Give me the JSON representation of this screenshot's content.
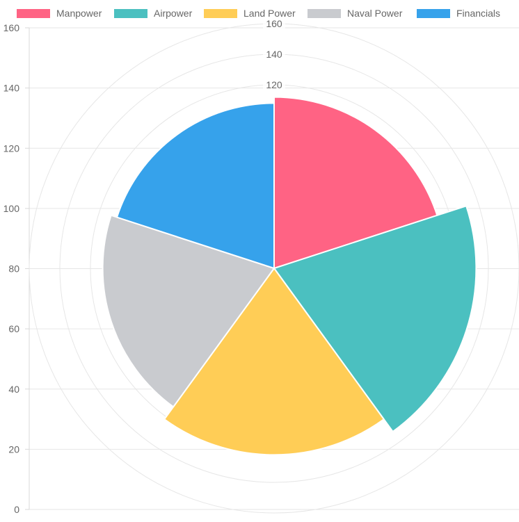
{
  "chart_data": {
    "type": "polarArea",
    "title": "",
    "categories": [
      "Manpower",
      "Airpower",
      "Land Power",
      "Naval Power",
      "Financials"
    ],
    "values": [
      112,
      132,
      122,
      112,
      108
    ],
    "colors": [
      "#FF6384",
      "#4BC0C0",
      "#FFCD56",
      "#C9CBCF",
      "#36A2EB"
    ],
    "legend": {
      "position": "top",
      "entries": [
        "Manpower",
        "Airpower",
        "Land Power",
        "Naval Power",
        "Financials"
      ]
    },
    "left_axis": {
      "range": [
        0,
        160
      ],
      "ticks": [
        "0",
        "20",
        "40",
        "60",
        "80",
        "100",
        "120",
        "140",
        "160"
      ]
    },
    "radial_axis": {
      "range": [
        0,
        160
      ],
      "labeled_ticks": [
        "120",
        "140",
        "160"
      ]
    },
    "grid": true
  }
}
